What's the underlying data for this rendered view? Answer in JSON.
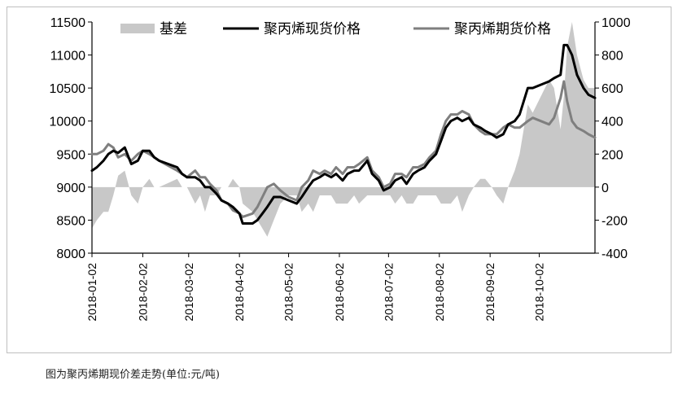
{
  "caption": "图为聚丙烯期现价差走势(单位:元/吨)",
  "chart_data": {
    "type": "line",
    "legend": [
      {
        "name": "基差",
        "kind": "area",
        "color": "#c8c8c8"
      },
      {
        "name": "聚丙烯现货价格",
        "kind": "line",
        "color": "#000000"
      },
      {
        "name": "聚丙烯期货价格",
        "kind": "line",
        "color": "#7f7f7f"
      }
    ],
    "legend_position": "top",
    "y_left": {
      "min": 8000,
      "max": 11500,
      "ticks": [
        "8000",
        "8500",
        "9000",
        "9500",
        "10000",
        "10500",
        "11000",
        "11500"
      ]
    },
    "y_right": {
      "min": -400,
      "max": 1000,
      "ticks": [
        "-400",
        "-200",
        "0",
        "200",
        "400",
        "600",
        "800",
        "1000"
      ]
    },
    "x_ticks": [
      "2018-01-02",
      "2018-02-02",
      "2018-03-02",
      "2018-04-02",
      "2018-05-02",
      "2018-06-02",
      "2018-07-02",
      "2018-08-02",
      "2018-09-02",
      "2018-10-02"
    ],
    "x_range": [
      "2018-01-02",
      "2018-11-05"
    ],
    "grid": false,
    "spot": [
      [
        "2018-01-02",
        9250
      ],
      [
        "2018-01-05",
        9300
      ],
      [
        "2018-01-09",
        9400
      ],
      [
        "2018-01-12",
        9500
      ],
      [
        "2018-01-15",
        9550
      ],
      [
        "2018-01-18",
        9520
      ],
      [
        "2018-01-22",
        9600
      ],
      [
        "2018-01-26",
        9350
      ],
      [
        "2018-01-30",
        9400
      ],
      [
        "2018-02-02",
        9550
      ],
      [
        "2018-02-06",
        9550
      ],
      [
        "2018-02-09",
        9450
      ],
      [
        "2018-02-12",
        9400
      ],
      [
        "2018-02-23",
        9300
      ],
      [
        "2018-02-26",
        9200
      ],
      [
        "2018-03-01",
        9150
      ],
      [
        "2018-03-06",
        9150
      ],
      [
        "2018-03-09",
        9100
      ],
      [
        "2018-03-12",
        9000
      ],
      [
        "2018-03-15",
        9000
      ],
      [
        "2018-03-19",
        8900
      ],
      [
        "2018-03-22",
        8800
      ],
      [
        "2018-03-26",
        8750
      ],
      [
        "2018-03-29",
        8700
      ],
      [
        "2018-04-02",
        8600
      ],
      [
        "2018-04-04",
        8450
      ],
      [
        "2018-04-10",
        8450
      ],
      [
        "2018-04-13",
        8500
      ],
      [
        "2018-04-16",
        8600
      ],
      [
        "2018-04-19",
        8700
      ],
      [
        "2018-04-23",
        8850
      ],
      [
        "2018-04-27",
        8850
      ],
      [
        "2018-05-02",
        8800
      ],
      [
        "2018-05-07",
        8750
      ],
      [
        "2018-05-10",
        8850
      ],
      [
        "2018-05-14",
        9000
      ],
      [
        "2018-05-17",
        9100
      ],
      [
        "2018-05-21",
        9150
      ],
      [
        "2018-05-24",
        9200
      ],
      [
        "2018-05-28",
        9150
      ],
      [
        "2018-05-31",
        9200
      ],
      [
        "2018-06-04",
        9100
      ],
      [
        "2018-06-07",
        9200
      ],
      [
        "2018-06-11",
        9250
      ],
      [
        "2018-06-14",
        9250
      ],
      [
        "2018-06-19",
        9400
      ],
      [
        "2018-06-22",
        9200
      ],
      [
        "2018-06-26",
        9100
      ],
      [
        "2018-06-29",
        8950
      ],
      [
        "2018-07-03",
        9000
      ],
      [
        "2018-07-06",
        9100
      ],
      [
        "2018-07-10",
        9150
      ],
      [
        "2018-07-13",
        9050
      ],
      [
        "2018-07-17",
        9200
      ],
      [
        "2018-07-20",
        9250
      ],
      [
        "2018-07-24",
        9300
      ],
      [
        "2018-07-27",
        9400
      ],
      [
        "2018-07-31",
        9500
      ],
      [
        "2018-08-03",
        9700
      ],
      [
        "2018-08-06",
        9900
      ],
      [
        "2018-08-09",
        10000
      ],
      [
        "2018-08-13",
        10050
      ],
      [
        "2018-08-16",
        10000
      ],
      [
        "2018-08-20",
        10050
      ],
      [
        "2018-08-23",
        9950
      ],
      [
        "2018-08-27",
        9900
      ],
      [
        "2018-08-30",
        9850
      ],
      [
        "2018-09-03",
        9800
      ],
      [
        "2018-09-06",
        9750
      ],
      [
        "2018-09-10",
        9800
      ],
      [
        "2018-09-13",
        9950
      ],
      [
        "2018-09-17",
        10000
      ],
      [
        "2018-09-20",
        10100
      ],
      [
        "2018-09-25",
        10500
      ],
      [
        "2018-09-28",
        10500
      ],
      [
        "2018-10-08",
        10600
      ],
      [
        "2018-10-11",
        10650
      ],
      [
        "2018-10-15",
        10700
      ],
      [
        "2018-10-17",
        11150
      ],
      [
        "2018-10-19",
        11150
      ],
      [
        "2018-10-22",
        11000
      ],
      [
        "2018-10-25",
        10700
      ],
      [
        "2018-10-29",
        10500
      ],
      [
        "2018-11-01",
        10400
      ],
      [
        "2018-11-05",
        10350
      ]
    ],
    "futures": [
      [
        "2018-01-02",
        9500
      ],
      [
        "2018-01-05",
        9500
      ],
      [
        "2018-01-09",
        9550
      ],
      [
        "2018-01-12",
        9650
      ],
      [
        "2018-01-15",
        9600
      ],
      [
        "2018-01-18",
        9450
      ],
      [
        "2018-01-22",
        9500
      ],
      [
        "2018-01-26",
        9400
      ],
      [
        "2018-01-30",
        9500
      ],
      [
        "2018-02-02",
        9550
      ],
      [
        "2018-02-06",
        9500
      ],
      [
        "2018-02-09",
        9450
      ],
      [
        "2018-02-12",
        9400
      ],
      [
        "2018-02-23",
        9250
      ],
      [
        "2018-02-26",
        9200
      ],
      [
        "2018-03-01",
        9150
      ],
      [
        "2018-03-06",
        9250
      ],
      [
        "2018-03-09",
        9150
      ],
      [
        "2018-03-12",
        9150
      ],
      [
        "2018-03-15",
        9050
      ],
      [
        "2018-03-19",
        8950
      ],
      [
        "2018-03-22",
        8800
      ],
      [
        "2018-03-26",
        8750
      ],
      [
        "2018-03-29",
        8650
      ],
      [
        "2018-04-02",
        8600
      ],
      [
        "2018-04-04",
        8550
      ],
      [
        "2018-04-10",
        8600
      ],
      [
        "2018-04-13",
        8700
      ],
      [
        "2018-04-16",
        8850
      ],
      [
        "2018-04-19",
        9000
      ],
      [
        "2018-04-23",
        9050
      ],
      [
        "2018-04-27",
        8950
      ],
      [
        "2018-05-02",
        8850
      ],
      [
        "2018-05-07",
        8800
      ],
      [
        "2018-05-10",
        9000
      ],
      [
        "2018-05-14",
        9100
      ],
      [
        "2018-05-17",
        9250
      ],
      [
        "2018-05-21",
        9200
      ],
      [
        "2018-05-24",
        9250
      ],
      [
        "2018-05-28",
        9200
      ],
      [
        "2018-05-31",
        9300
      ],
      [
        "2018-06-04",
        9200
      ],
      [
        "2018-06-07",
        9300
      ],
      [
        "2018-06-11",
        9300
      ],
      [
        "2018-06-14",
        9350
      ],
      [
        "2018-06-19",
        9450
      ],
      [
        "2018-06-22",
        9250
      ],
      [
        "2018-06-26",
        9150
      ],
      [
        "2018-06-29",
        9000
      ],
      [
        "2018-07-03",
        9050
      ],
      [
        "2018-07-06",
        9200
      ],
      [
        "2018-07-10",
        9200
      ],
      [
        "2018-07-13",
        9150
      ],
      [
        "2018-07-17",
        9300
      ],
      [
        "2018-07-20",
        9300
      ],
      [
        "2018-07-24",
        9350
      ],
      [
        "2018-07-27",
        9450
      ],
      [
        "2018-07-31",
        9550
      ],
      [
        "2018-08-03",
        9800
      ],
      [
        "2018-08-06",
        10000
      ],
      [
        "2018-08-09",
        10100
      ],
      [
        "2018-08-13",
        10100
      ],
      [
        "2018-08-16",
        10150
      ],
      [
        "2018-08-20",
        10100
      ],
      [
        "2018-08-23",
        9950
      ],
      [
        "2018-08-27",
        9850
      ],
      [
        "2018-08-30",
        9800
      ],
      [
        "2018-09-03",
        9800
      ],
      [
        "2018-09-06",
        9800
      ],
      [
        "2018-09-10",
        9900
      ],
      [
        "2018-09-13",
        9950
      ],
      [
        "2018-09-17",
        9900
      ],
      [
        "2018-09-20",
        9900
      ],
      [
        "2018-09-25",
        10000
      ],
      [
        "2018-09-28",
        10050
      ],
      [
        "2018-10-08",
        9950
      ],
      [
        "2018-10-11",
        10050
      ],
      [
        "2018-10-15",
        10350
      ],
      [
        "2018-10-17",
        10600
      ],
      [
        "2018-10-19",
        10300
      ],
      [
        "2018-10-22",
        10000
      ],
      [
        "2018-10-25",
        9900
      ],
      [
        "2018-10-29",
        9850
      ],
      [
        "2018-11-01",
        9800
      ],
      [
        "2018-11-05",
        9750
      ]
    ],
    "basis": [
      [
        "2018-01-02",
        -250
      ],
      [
        "2018-01-05",
        -200
      ],
      [
        "2018-01-09",
        -150
      ],
      [
        "2018-01-12",
        -150
      ],
      [
        "2018-01-15",
        -50
      ],
      [
        "2018-01-18",
        70
      ],
      [
        "2018-01-22",
        100
      ],
      [
        "2018-01-26",
        -50
      ],
      [
        "2018-01-30",
        -100
      ],
      [
        "2018-02-02",
        0
      ],
      [
        "2018-02-06",
        50
      ],
      [
        "2018-02-09",
        0
      ],
      [
        "2018-02-12",
        0
      ],
      [
        "2018-02-23",
        50
      ],
      [
        "2018-02-26",
        0
      ],
      [
        "2018-03-01",
        0
      ],
      [
        "2018-03-06",
        -100
      ],
      [
        "2018-03-09",
        -50
      ],
      [
        "2018-03-12",
        -150
      ],
      [
        "2018-03-15",
        -50
      ],
      [
        "2018-03-19",
        -50
      ],
      [
        "2018-03-22",
        0
      ],
      [
        "2018-03-26",
        0
      ],
      [
        "2018-03-29",
        50
      ],
      [
        "2018-04-02",
        0
      ],
      [
        "2018-04-04",
        -100
      ],
      [
        "2018-04-10",
        -150
      ],
      [
        "2018-04-13",
        -200
      ],
      [
        "2018-04-16",
        -250
      ],
      [
        "2018-04-19",
        -300
      ],
      [
        "2018-04-23",
        -200
      ],
      [
        "2018-04-27",
        -100
      ],
      [
        "2018-05-02",
        -50
      ],
      [
        "2018-05-07",
        -50
      ],
      [
        "2018-05-10",
        -150
      ],
      [
        "2018-05-14",
        -100
      ],
      [
        "2018-05-17",
        -150
      ],
      [
        "2018-05-21",
        -50
      ],
      [
        "2018-05-24",
        -50
      ],
      [
        "2018-05-28",
        -50
      ],
      [
        "2018-05-31",
        -100
      ],
      [
        "2018-06-04",
        -100
      ],
      [
        "2018-06-07",
        -100
      ],
      [
        "2018-06-11",
        -50
      ],
      [
        "2018-06-14",
        -100
      ],
      [
        "2018-06-19",
        -50
      ],
      [
        "2018-06-22",
        -50
      ],
      [
        "2018-06-26",
        -50
      ],
      [
        "2018-06-29",
        -50
      ],
      [
        "2018-07-03",
        -50
      ],
      [
        "2018-07-06",
        -100
      ],
      [
        "2018-07-10",
        -50
      ],
      [
        "2018-07-13",
        -100
      ],
      [
        "2018-07-17",
        -100
      ],
      [
        "2018-07-20",
        -50
      ],
      [
        "2018-07-24",
        -50
      ],
      [
        "2018-07-27",
        -50
      ],
      [
        "2018-07-31",
        -50
      ],
      [
        "2018-08-03",
        -100
      ],
      [
        "2018-08-06",
        -100
      ],
      [
        "2018-08-09",
        -100
      ],
      [
        "2018-08-13",
        -50
      ],
      [
        "2018-08-16",
        -150
      ],
      [
        "2018-08-20",
        -50
      ],
      [
        "2018-08-23",
        0
      ],
      [
        "2018-08-27",
        50
      ],
      [
        "2018-08-30",
        50
      ],
      [
        "2018-09-03",
        0
      ],
      [
        "2018-09-06",
        -50
      ],
      [
        "2018-09-10",
        -100
      ],
      [
        "2018-09-13",
        0
      ],
      [
        "2018-09-17",
        100
      ],
      [
        "2018-09-20",
        200
      ],
      [
        "2018-09-25",
        500
      ],
      [
        "2018-09-28",
        450
      ],
      [
        "2018-10-08",
        650
      ],
      [
        "2018-10-11",
        600
      ],
      [
        "2018-10-15",
        350
      ],
      [
        "2018-10-17",
        550
      ],
      [
        "2018-10-19",
        850
      ],
      [
        "2018-10-22",
        1000
      ],
      [
        "2018-10-25",
        800
      ],
      [
        "2018-10-29",
        650
      ],
      [
        "2018-11-01",
        600
      ],
      [
        "2018-11-05",
        600
      ]
    ]
  }
}
